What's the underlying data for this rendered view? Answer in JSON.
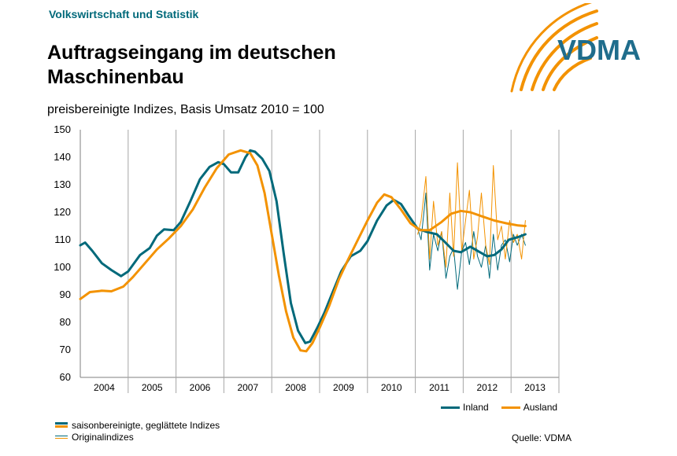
{
  "header": {
    "brand": "Volkswirtschaft und Statistik",
    "logo_text": "VDMA"
  },
  "colors": {
    "inland": "#00697a",
    "ausland": "#f39200",
    "gridline": "#a6a6a6"
  },
  "legend_bottom": {
    "smoothed": "saisonbereinigte, geglättete Indizes",
    "original": "Originalindizes"
  },
  "source": "Quelle: VDMA",
  "chart_data": {
    "type": "line",
    "title": "Auftragseingang im deutschen Maschinenbau",
    "subtitle": "preisbereinigte Indizes, Basis Umsatz 2010 = 100",
    "ylim": [
      60,
      150
    ],
    "yticks": [
      60,
      70,
      80,
      90,
      100,
      110,
      120,
      130,
      140,
      150
    ],
    "xlim": [
      2004.0,
      2014.0
    ],
    "year_labels": [
      "2004",
      "2005",
      "2006",
      "2007",
      "2008",
      "2009",
      "2010",
      "2011",
      "2012",
      "2013"
    ],
    "legend": {
      "position": "bottom-right"
    },
    "series": [
      {
        "name": "Inland",
        "kind": "smoothed",
        "color": "#00697a",
        "points": [
          [
            2004.0,
            108
          ],
          [
            2004.1,
            109
          ],
          [
            2004.25,
            106
          ],
          [
            2004.45,
            101.5
          ],
          [
            2004.65,
            99
          ],
          [
            2004.85,
            96.8
          ],
          [
            2005.0,
            98.5
          ],
          [
            2005.25,
            104.5
          ],
          [
            2005.45,
            107
          ],
          [
            2005.6,
            111.5
          ],
          [
            2005.75,
            113.8
          ],
          [
            2005.95,
            113.5
          ],
          [
            2006.1,
            116.5
          ],
          [
            2006.3,
            124
          ],
          [
            2006.5,
            132
          ],
          [
            2006.7,
            136.5
          ],
          [
            2006.88,
            138.2
          ],
          [
            2007.0,
            137.5
          ],
          [
            2007.15,
            134.5
          ],
          [
            2007.3,
            134.5
          ],
          [
            2007.45,
            140
          ],
          [
            2007.55,
            142.5
          ],
          [
            2007.65,
            142
          ],
          [
            2007.8,
            139.5
          ],
          [
            2007.95,
            135
          ],
          [
            2008.1,
            124
          ],
          [
            2008.25,
            105
          ],
          [
            2008.4,
            87
          ],
          [
            2008.55,
            77
          ],
          [
            2008.7,
            72.5
          ],
          [
            2008.8,
            73
          ],
          [
            2008.95,
            78
          ],
          [
            2009.1,
            83.5
          ],
          [
            2009.25,
            90
          ],
          [
            2009.45,
            98.5
          ],
          [
            2009.65,
            104
          ],
          [
            2009.85,
            106
          ],
          [
            2010.0,
            109.5
          ],
          [
            2010.2,
            117
          ],
          [
            2010.4,
            122.5
          ],
          [
            2010.55,
            124.5
          ],
          [
            2010.7,
            123
          ],
          [
            2010.85,
            119
          ],
          [
            2011.05,
            114
          ],
          [
            2011.25,
            112.8
          ],
          [
            2011.45,
            112
          ],
          [
            2011.6,
            109.5
          ],
          [
            2011.8,
            106
          ],
          [
            2011.95,
            105.5
          ],
          [
            2012.15,
            107.5
          ],
          [
            2012.35,
            105.5
          ],
          [
            2012.5,
            104
          ],
          [
            2012.65,
            104.5
          ],
          [
            2012.8,
            106.5
          ],
          [
            2012.95,
            110
          ],
          [
            2013.15,
            111
          ],
          [
            2013.3,
            112
          ]
        ]
      },
      {
        "name": "Ausland",
        "kind": "smoothed",
        "color": "#f39200",
        "points": [
          [
            2004.0,
            88.5
          ],
          [
            2004.2,
            91
          ],
          [
            2004.45,
            91.5
          ],
          [
            2004.65,
            91.3
          ],
          [
            2004.9,
            93
          ],
          [
            2005.1,
            96.5
          ],
          [
            2005.35,
            101.5
          ],
          [
            2005.6,
            106.5
          ],
          [
            2005.85,
            110.5
          ],
          [
            2006.1,
            115
          ],
          [
            2006.35,
            121
          ],
          [
            2006.6,
            129
          ],
          [
            2006.85,
            136
          ],
          [
            2007.1,
            141
          ],
          [
            2007.35,
            142.5
          ],
          [
            2007.55,
            141.5
          ],
          [
            2007.7,
            137
          ],
          [
            2007.85,
            127
          ],
          [
            2008.0,
            112
          ],
          [
            2008.15,
            97
          ],
          [
            2008.3,
            84
          ],
          [
            2008.45,
            74.5
          ],
          [
            2008.6,
            69.8
          ],
          [
            2008.72,
            69.5
          ],
          [
            2008.85,
            72.5
          ],
          [
            2009.0,
            78
          ],
          [
            2009.2,
            86
          ],
          [
            2009.4,
            95.5
          ],
          [
            2009.6,
            103
          ],
          [
            2009.8,
            110
          ],
          [
            2010.0,
            117
          ],
          [
            2010.2,
            123.5
          ],
          [
            2010.35,
            126.5
          ],
          [
            2010.5,
            125.5
          ],
          [
            2010.7,
            121
          ],
          [
            2010.9,
            116
          ],
          [
            2011.1,
            113.5
          ],
          [
            2011.3,
            113.5
          ],
          [
            2011.55,
            116.5
          ],
          [
            2011.75,
            119.5
          ],
          [
            2011.95,
            120.5
          ],
          [
            2012.15,
            120
          ],
          [
            2012.4,
            118.5
          ],
          [
            2012.65,
            117
          ],
          [
            2012.9,
            116
          ],
          [
            2013.15,
            115.2
          ],
          [
            2013.3,
            115
          ]
        ]
      },
      {
        "name": "Inland",
        "kind": "original",
        "color": "#00697a",
        "points": [
          [
            2011.05,
            114
          ],
          [
            2011.12,
            110
          ],
          [
            2011.22,
            127
          ],
          [
            2011.3,
            99
          ],
          [
            2011.38,
            112
          ],
          [
            2011.47,
            106
          ],
          [
            2011.55,
            113
          ],
          [
            2011.64,
            96
          ],
          [
            2011.72,
            104
          ],
          [
            2011.8,
            107
          ],
          [
            2011.88,
            92
          ],
          [
            2011.97,
            106
          ],
          [
            2012.05,
            109
          ],
          [
            2012.13,
            101
          ],
          [
            2012.22,
            113
          ],
          [
            2012.3,
            104
          ],
          [
            2012.38,
            100
          ],
          [
            2012.47,
            108
          ],
          [
            2012.55,
            96
          ],
          [
            2012.63,
            112
          ],
          [
            2012.72,
            99
          ],
          [
            2012.8,
            108
          ],
          [
            2012.88,
            110
          ],
          [
            2012.97,
            102
          ],
          [
            2013.05,
            112
          ],
          [
            2013.13,
            108
          ],
          [
            2013.22,
            112
          ],
          [
            2013.3,
            108
          ]
        ]
      },
      {
        "name": "Ausland",
        "kind": "original",
        "color": "#f39200",
        "points": [
          [
            2011.05,
            112
          ],
          [
            2011.12,
            117
          ],
          [
            2011.22,
            133
          ],
          [
            2011.3,
            103
          ],
          [
            2011.38,
            124
          ],
          [
            2011.47,
            108
          ],
          [
            2011.55,
            113
          ],
          [
            2011.64,
            100
          ],
          [
            2011.72,
            127
          ],
          [
            2011.8,
            104
          ],
          [
            2011.88,
            138
          ],
          [
            2011.97,
            106
          ],
          [
            2012.05,
            117
          ],
          [
            2012.13,
            128
          ],
          [
            2012.22,
            103
          ],
          [
            2012.3,
            111
          ],
          [
            2012.38,
            127
          ],
          [
            2012.47,
            108
          ],
          [
            2012.55,
            101
          ],
          [
            2012.63,
            137
          ],
          [
            2012.72,
            110
          ],
          [
            2012.8,
            115
          ],
          [
            2012.88,
            103
          ],
          [
            2012.97,
            117
          ],
          [
            2013.05,
            109
          ],
          [
            2013.13,
            112
          ],
          [
            2013.22,
            103
          ],
          [
            2013.3,
            117
          ]
        ]
      }
    ],
    "legend_entries": [
      "Inland",
      "Ausland"
    ]
  }
}
